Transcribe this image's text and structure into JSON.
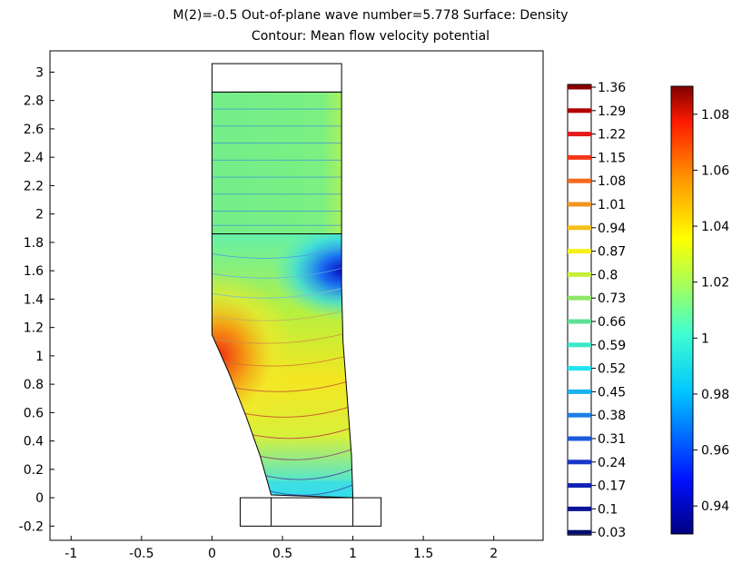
{
  "chart_data": {
    "type": "heatmap",
    "title": "M(2)=-0.5 Out-of-plane wave number=5.778   Surface: Density",
    "subtitle": "Contour: Mean flow velocity potential",
    "xlabel": "",
    "ylabel": "",
    "xlim": [
      -1.15,
      2.35
    ],
    "ylim": [
      -0.3,
      3.15
    ],
    "x_ticks": [
      "-1",
      "-0.5",
      "0",
      "0.5",
      "1",
      "1.5",
      "2"
    ],
    "x_tick_values": [
      -1,
      -0.5,
      0,
      0.5,
      1,
      1.5,
      2
    ],
    "y_ticks": [
      "-0.2",
      "0",
      "0.2",
      "0.4",
      "0.6",
      "0.8",
      "1",
      "1.2",
      "1.4",
      "1.6",
      "1.8",
      "2",
      "2.2",
      "2.4",
      "2.6",
      "2.8",
      "3"
    ],
    "y_tick_values": [
      -0.2,
      0,
      0.2,
      0.4,
      0.6,
      0.8,
      1,
      1.2,
      1.4,
      1.6,
      1.8,
      2,
      2.2,
      2.4,
      2.6,
      2.8,
      3
    ],
    "grid": false,
    "surface_colorbar": {
      "min": 0.93,
      "max": 1.09,
      "ticks": [
        "1.08",
        "1.06",
        "1.04",
        "1.02",
        "1",
        "0.98",
        "0.96",
        "0.94"
      ],
      "tick_values": [
        1.08,
        1.06,
        1.04,
        1.02,
        1.0,
        0.98,
        0.96,
        0.94
      ]
    },
    "contour_legend": {
      "levels": [
        "1.36",
        "1.29",
        "1.22",
        "1.15",
        "1.08",
        "1.01",
        "0.94",
        "0.87",
        "0.8",
        "0.73",
        "0.66",
        "0.59",
        "0.52",
        "0.45",
        "0.38",
        "0.31",
        "0.24",
        "0.17",
        "0.1",
        "0.03"
      ],
      "colors": [
        "#8b0000",
        "#b20000",
        "#e41a1a",
        "#f5381a",
        "#f26a1e",
        "#f0951f",
        "#f4bf1d",
        "#f5f01c",
        "#c7ee3a",
        "#8fe66a",
        "#5fe094",
        "#3be8c8",
        "#25e2f0",
        "#1ab2ee",
        "#1e7fe4",
        "#1e5ad8",
        "#1836c8",
        "#1222b2",
        "#0c1494",
        "#060c6e"
      ]
    },
    "geometry_domain": {
      "upper_duct": {
        "x": [
          0,
          0.92
        ],
        "y": [
          1.86,
          2.86
        ]
      },
      "top_box": {
        "x": [
          0,
          0.92
        ],
        "y": [
          2.86,
          3.06
        ]
      },
      "bottom_box": {
        "x": [
          0.2,
          1.2
        ],
        "y": [
          -0.2,
          0.0
        ]
      },
      "bottom_box_divider_x": 1.0
    }
  }
}
